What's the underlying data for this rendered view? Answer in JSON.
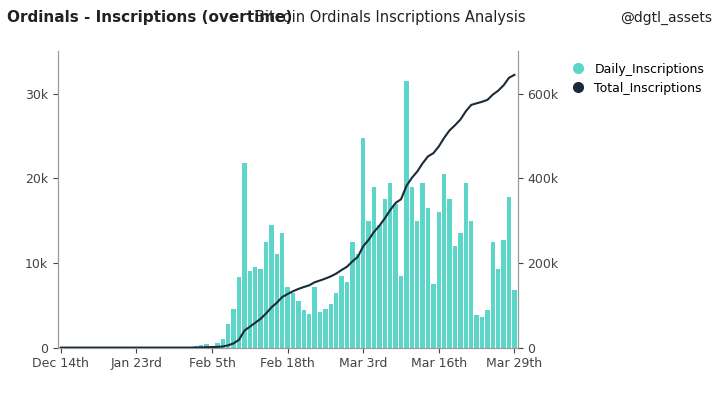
{
  "chart_data": {
    "type": "bar",
    "title": "Ordinals - Inscriptions (overtime)",
    "subtitle": "Bitcoin Ordinals Inscriptions Analysis",
    "annotations": [
      "@dgtl_assets"
    ],
    "categories": [
      "Dec 14th",
      null,
      null,
      null,
      null,
      null,
      null,
      null,
      null,
      null,
      null,
      null,
      null,
      null,
      "Jan 23rd",
      null,
      null,
      null,
      null,
      null,
      null,
      null,
      null,
      null,
      null,
      null,
      null,
      null,
      "Feb 5th",
      null,
      null,
      null,
      null,
      null,
      null,
      null,
      null,
      null,
      null,
      null,
      null,
      null,
      "Feb 18th",
      null,
      null,
      null,
      null,
      null,
      null,
      null,
      null,
      null,
      null,
      null,
      null,
      null,
      "Mar 3rd",
      null,
      null,
      null,
      null,
      null,
      null,
      null,
      null,
      null,
      null,
      null,
      null,
      null,
      "Mar 16th",
      null,
      null,
      null,
      null,
      null,
      null,
      null,
      null,
      null,
      null,
      null,
      null,
      null,
      "Mar 29th"
    ],
    "series": [
      {
        "name": "Daily_Inscriptions",
        "type": "bar",
        "color": "#5cd6c9",
        "values": [
          0,
          0,
          0,
          0,
          0,
          0,
          0,
          0,
          0,
          0,
          0,
          0,
          0,
          0,
          0,
          0,
          0,
          0,
          0,
          0,
          0,
          0,
          0,
          0,
          100,
          150,
          300,
          400,
          200,
          500,
          1000,
          2800,
          4600,
          8300,
          21800,
          9000,
          9500,
          9300,
          12500,
          14500,
          11000,
          13500,
          7200,
          6500,
          5500,
          4500,
          4000,
          7200,
          4200,
          4600,
          5200,
          6500,
          8500,
          7800,
          12500,
          11000,
          24800,
          15000,
          19000,
          14500,
          17500,
          19500,
          17000,
          8500,
          31500,
          19000,
          15000,
          19500,
          16500,
          7500,
          16000,
          20500,
          17500,
          12000,
          13500,
          19500,
          15000,
          3800,
          3600,
          4500,
          12500,
          9300,
          12700,
          17800,
          6800
        ]
      },
      {
        "name": "Total_Inscriptions",
        "type": "line",
        "color": "#1b2a3a",
        "axis": "y2",
        "values": [
          0,
          0,
          0,
          0,
          0,
          0,
          0,
          0,
          0,
          0,
          0,
          0,
          0,
          0,
          0,
          0,
          0,
          0,
          0,
          0,
          0,
          0,
          0,
          0,
          100,
          250,
          550,
          950,
          1150,
          1650,
          2650,
          5450,
          10050,
          18350,
          40150,
          49150,
          58650,
          67950,
          80450,
          94950,
          105950,
          119450,
          126650,
          133150,
          138650,
          143150,
          147150,
          154350,
          158550,
          163150,
          168350,
          174850,
          183350,
          191150,
          203650,
          214650,
          239450,
          254450,
          273450,
          287950,
          305450,
          324950,
          341950,
          350450,
          381950,
          400950,
          415950,
          435450,
          451950,
          459450,
          475450,
          495950,
          513450,
          525450,
          538950,
          558450,
          573450,
          577250,
          580850,
          585350,
          597850,
          607150,
          619850,
          637650,
          644450
        ]
      }
    ],
    "ylim": [
      0,
      35000
    ],
    "yticks": [
      0,
      {
        "value": 10000,
        "label": "10k"
      },
      {
        "value": 20000,
        "label": "20k"
      },
      {
        "value": 30000,
        "label": "30k"
      }
    ],
    "y2lim": [
      0,
      700000
    ],
    "y2ticks": [
      0,
      {
        "value": 200000,
        "label": "200k"
      },
      {
        "value": 400000,
        "label": "400k"
      },
      {
        "value": 600000,
        "label": "600k"
      }
    ],
    "legend": "upper right",
    "grid": false
  }
}
